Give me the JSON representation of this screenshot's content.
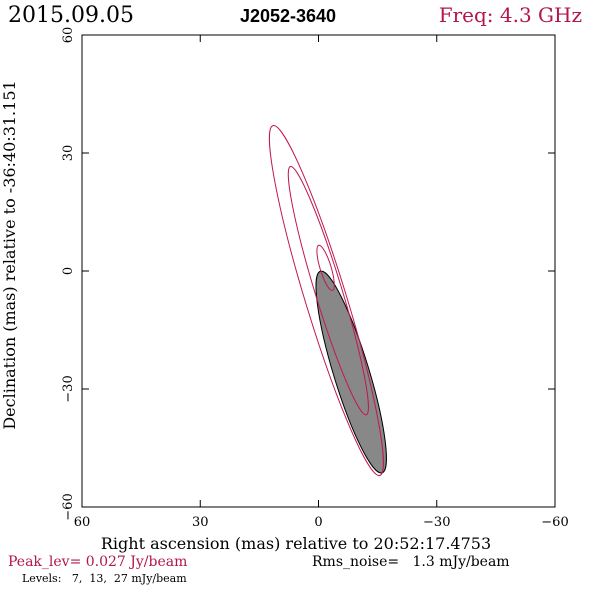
{
  "header": {
    "date": "2015.09.05",
    "source": "J2052-3640",
    "freq": "Freq: 4.3 GHz"
  },
  "footer": {
    "peak": "Peak_lev=  0.027 Jy/beam",
    "rms": "Rms_noise=   1.3 mJy/beam",
    "levels": "Levels:   7,  13,  27 mJy/beam"
  },
  "colors": {
    "accent": "#b3164a",
    "contour": "#c0184e",
    "beam_fill": "#888888",
    "axis": "#000000"
  },
  "chart_data": {
    "type": "contour",
    "title": "J2052-3640",
    "xlabel": "Right ascension (mas) relative to 20:52:17.4753",
    "ylabel": "Declination (mas) relative to -36:40:31.151",
    "xlim": [
      60,
      -60
    ],
    "ylim": [
      -60,
      60
    ],
    "xticks": [
      60,
      30,
      0,
      -30,
      -60
    ],
    "yticks": [
      60,
      30,
      0,
      -30,
      -60
    ],
    "xtick_labels": [
      "60",
      "30",
      "0",
      "−30",
      "−60"
    ],
    "ytick_labels": [
      "60",
      "30",
      "0",
      "−30",
      "−60"
    ],
    "levels_mJy_per_beam": [
      7,
      13,
      27
    ],
    "contours": [
      {
        "level": 7,
        "center": [
          -2.0,
          -7.5
        ],
        "semi_major": 46.5,
        "semi_minor": 5.2,
        "pa_deg": -17
      },
      {
        "level": 13,
        "center": [
          -2.5,
          -5.0
        ],
        "semi_major": 33.0,
        "semi_minor": 3.4,
        "pa_deg": -17
      },
      {
        "level": 27,
        "center": [
          -1.8,
          0.8
        ],
        "semi_major": 6.0,
        "semi_minor": 1.4,
        "pa_deg": -17
      }
    ],
    "beam": {
      "center": [
        -8.3,
        -25.7
      ],
      "semi_major": 26.8,
      "semi_minor": 4.5,
      "pa_deg": -17
    }
  }
}
